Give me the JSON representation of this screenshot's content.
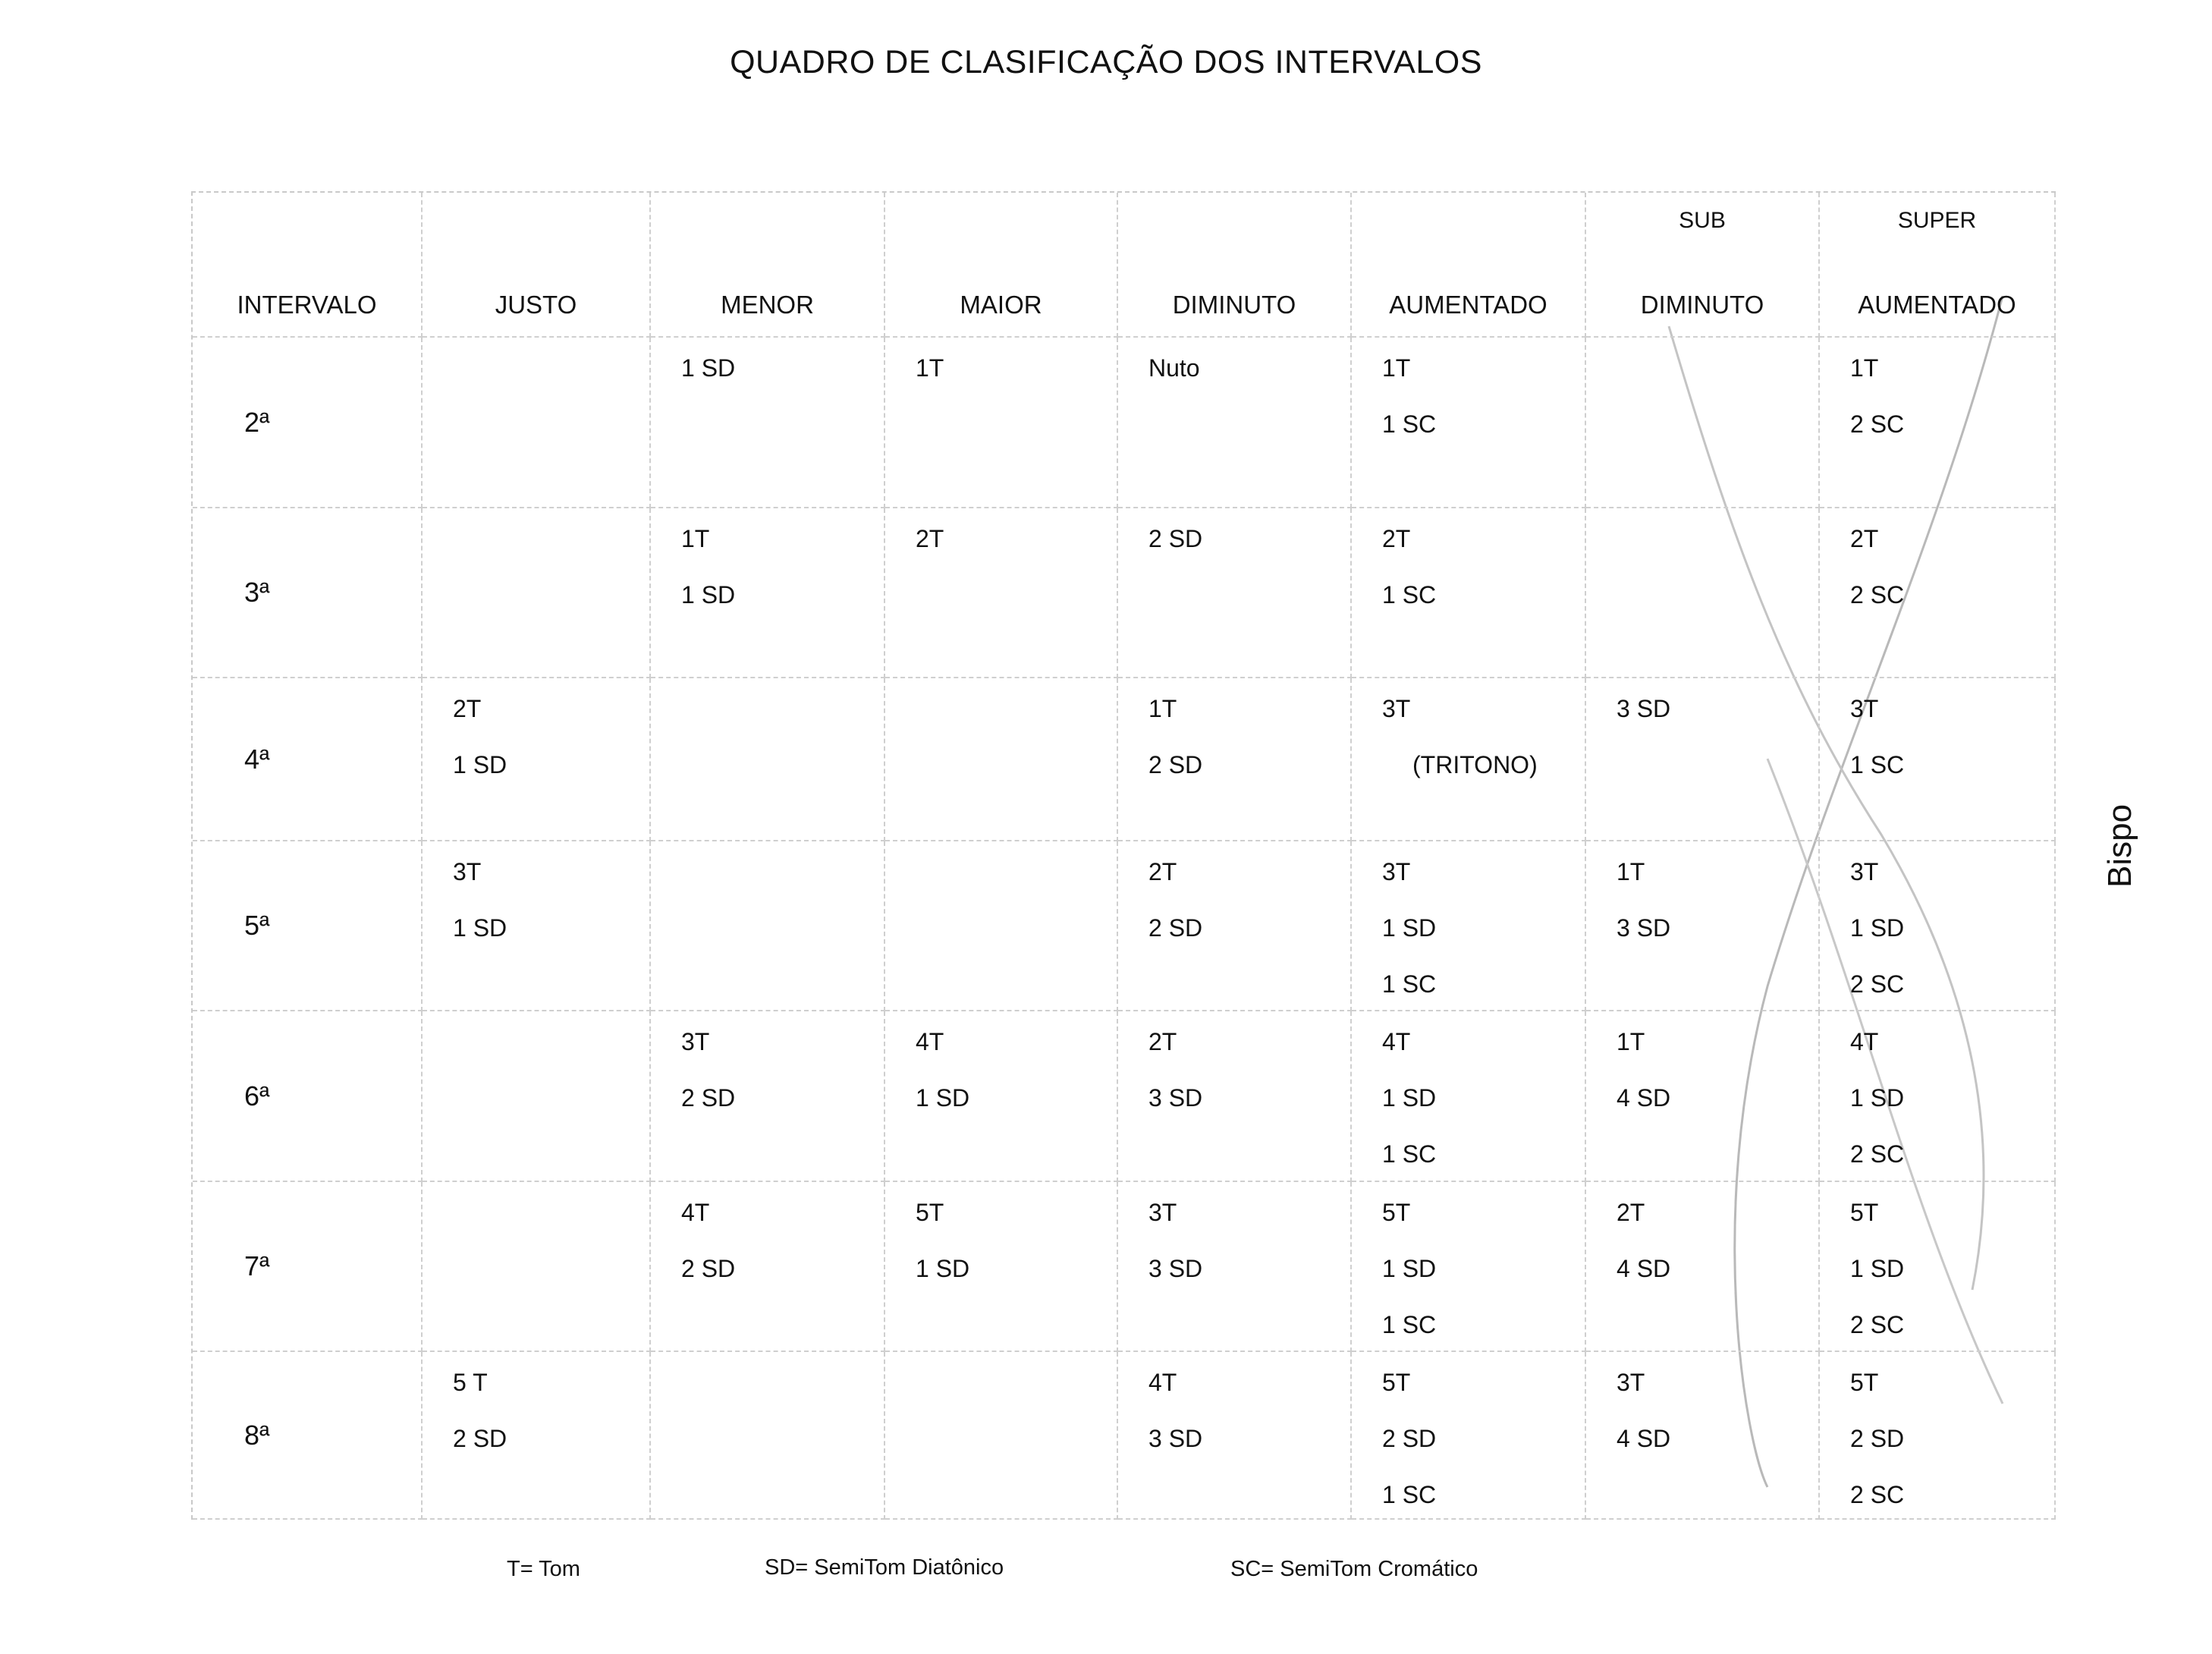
{
  "title": "QUADRO DE CLASIFICAÇÃO DOS INTERVALOS",
  "headers": [
    {
      "pre": "",
      "label": "INTERVALO"
    },
    {
      "pre": "",
      "label": "JUSTO"
    },
    {
      "pre": "",
      "label": "MENOR"
    },
    {
      "pre": "",
      "label": "MAIOR"
    },
    {
      "pre": "",
      "label": "DIMINUTO"
    },
    {
      "pre": "",
      "label": "AUMENTADO"
    },
    {
      "pre": "SUB",
      "label": "DIMINUTO"
    },
    {
      "pre": "SUPER",
      "label": "AUMENTADO"
    }
  ],
  "rows": [
    {
      "interval": "2ª",
      "cells": [
        [],
        [
          "1 SD"
        ],
        [
          "1T"
        ],
        [
          "Nuto"
        ],
        [
          "1T",
          "1 SC"
        ],
        [],
        [
          "1T",
          "2 SC"
        ]
      ]
    },
    {
      "interval": "3ª",
      "cells": [
        [],
        [
          "1T",
          "1 SD"
        ],
        [
          "2T"
        ],
        [
          "2 SD"
        ],
        [
          "2T",
          "1 SC"
        ],
        [],
        [
          "2T",
          "2 SC"
        ]
      ]
    },
    {
      "interval": "4ª",
      "cells": [
        [
          "2T",
          "1 SD"
        ],
        [],
        [],
        [
          "1T",
          "2 SD"
        ],
        [
          "3T",
          "(TRITONO)"
        ],
        [
          "3 SD"
        ],
        [
          "3T",
          "1 SC"
        ]
      ]
    },
    {
      "interval": "5ª",
      "cells": [
        [
          "3T",
          "1 SD"
        ],
        [],
        [],
        [
          "2T",
          "2 SD"
        ],
        [
          "3T",
          "1 SD",
          "1 SC"
        ],
        [
          "1T",
          "3 SD"
        ],
        [
          "3T",
          "1 SD",
          "2 SC"
        ]
      ]
    },
    {
      "interval": "6ª",
      "cells": [
        [],
        [
          "3T",
          "2 SD"
        ],
        [
          "4T",
          "1 SD"
        ],
        [
          "2T",
          "3 SD"
        ],
        [
          "4T",
          "1 SD",
          "1 SC"
        ],
        [
          "1T",
          "4 SD"
        ],
        [
          "4T",
          "1 SD",
          "2 SC"
        ]
      ]
    },
    {
      "interval": "7ª",
      "cells": [
        [],
        [
          "4T",
          "2 SD"
        ],
        [
          "5T",
          "1 SD"
        ],
        [
          "3T",
          "3 SD"
        ],
        [
          "5T",
          "1 SD",
          "1 SC"
        ],
        [
          "2T",
          "4 SD"
        ],
        [
          "5T",
          "1 SD",
          "2 SC"
        ]
      ]
    },
    {
      "interval": "8ª",
      "cells": [
        [
          "5 T",
          "2 SD"
        ],
        [],
        [],
        [
          "4T",
          "3 SD"
        ],
        [
          "5T",
          "2 SD",
          "1 SC"
        ],
        [
          "3T",
          "4 SD"
        ],
        [
          "5T",
          "2 SD",
          "2 SC"
        ]
      ]
    }
  ],
  "legend": [
    "T= Tom",
    "SD= SemiTom Diatônico",
    "SC= SemiTom Cromático"
  ],
  "signature": "Bispo"
}
